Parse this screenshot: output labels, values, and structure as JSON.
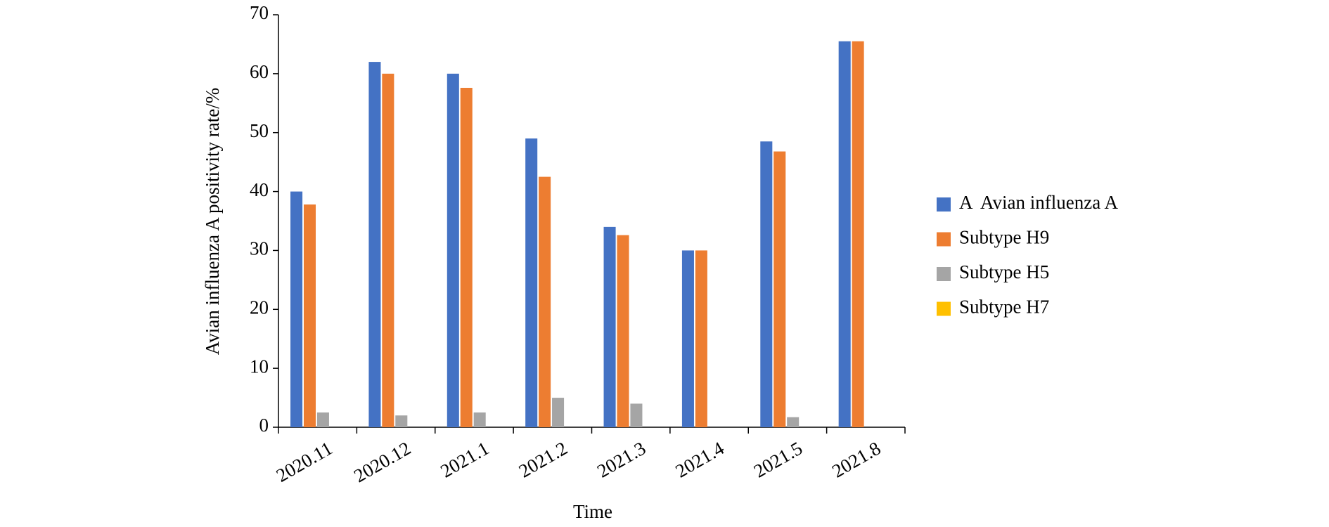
{
  "chart_data": {
    "type": "bar",
    "x_label": "Time",
    "y_label": "Avian influenza A positivity rate/%",
    "categories": [
      "2020.11",
      "2020.12",
      "2021.1",
      "2021.2",
      "2021.3",
      "2021.4",
      "2021.5",
      "2021.8"
    ],
    "series": [
      {
        "name": "A  Avian influenza A",
        "color": "#4472c4",
        "values": [
          40,
          62,
          60,
          49,
          34,
          30,
          48.5,
          65.5
        ]
      },
      {
        "name": "Subtype H9",
        "color": "#ed7d31",
        "values": [
          37.8,
          60,
          57.6,
          42.5,
          32.6,
          30,
          46.8,
          65.5
        ]
      },
      {
        "name": "Subtype H5",
        "color": "#a5a5a5",
        "values": [
          2.5,
          2,
          2.5,
          5,
          4,
          0,
          1.7,
          0
        ]
      },
      {
        "name": "Subtype H7",
        "color": "#ffc000",
        "values": [
          0,
          0,
          0,
          0,
          0,
          0,
          0,
          0
        ]
      }
    ],
    "ylim": [
      0,
      70
    ],
    "yticks": [
      0,
      10,
      20,
      30,
      40,
      50,
      60,
      70
    ],
    "legend": "right"
  }
}
